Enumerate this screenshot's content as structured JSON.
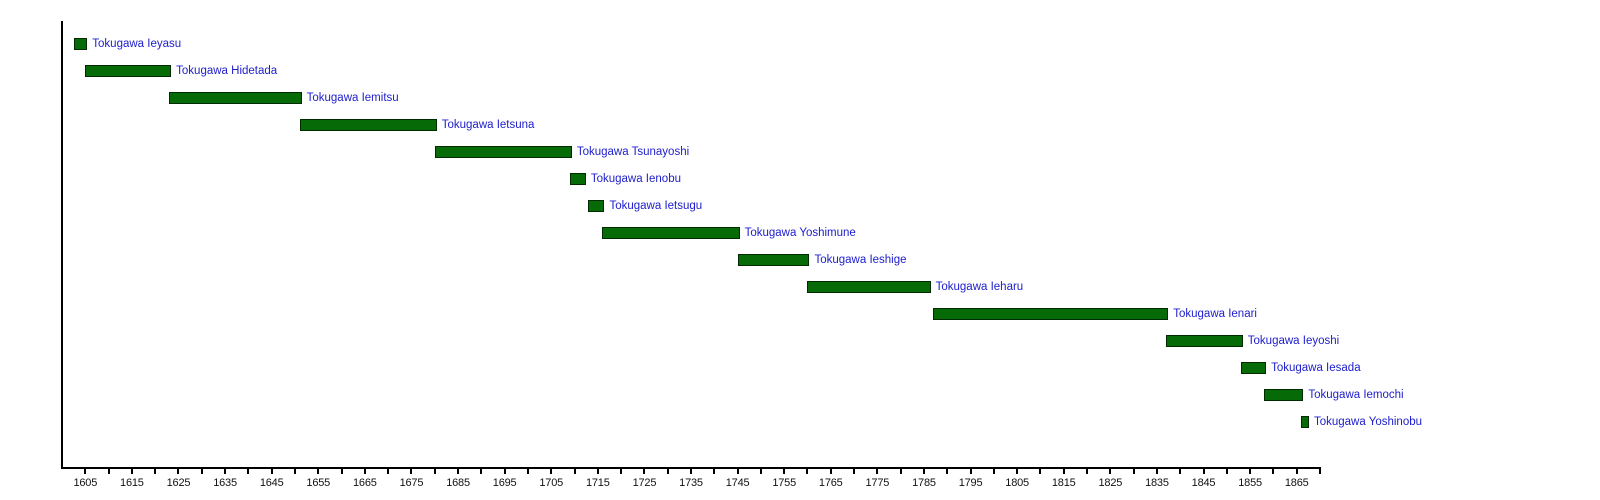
{
  "chart_data": {
    "type": "bar",
    "subtype": "gantt-timeline",
    "title": "",
    "xlabel": "",
    "ylabel": "",
    "xlim": [
      1600,
      1870
    ],
    "x_minor_tick_interval": 5,
    "x_label_interval": 10,
    "grid": false,
    "legend": "none",
    "x_tick_labels": [
      "1605",
      "1615",
      "1625",
      "1635",
      "1645",
      "1655",
      "1665",
      "1675",
      "1685",
      "1695",
      "1705",
      "1715",
      "1725",
      "1735",
      "1745",
      "1755",
      "1765",
      "1775",
      "1785",
      "1795",
      "1805",
      "1815",
      "1825",
      "1835",
      "1845",
      "1855",
      "1865"
    ],
    "bars": [
      {
        "label": "Tokugawa Ieyasu",
        "start": 1602.5,
        "end": 1605
      },
      {
        "label": "Tokugawa Hidetada",
        "start": 1605,
        "end": 1623
      },
      {
        "label": "Tokugawa Iemitsu",
        "start": 1623,
        "end": 1651
      },
      {
        "label": "Tokugawa Ietsuna",
        "start": 1651,
        "end": 1680
      },
      {
        "label": "Tokugawa Tsunayoshi",
        "start": 1680,
        "end": 1709
      },
      {
        "label": "Tokugawa Ienobu",
        "start": 1709,
        "end": 1712
      },
      {
        "label": "Tokugawa Ietsugu",
        "start": 1713,
        "end": 1716
      },
      {
        "label": "Tokugawa Yoshimune",
        "start": 1716,
        "end": 1745
      },
      {
        "label": "Tokugawa Ieshige",
        "start": 1745,
        "end": 1760
      },
      {
        "label": "Tokugawa Ieharu",
        "start": 1760,
        "end": 1786
      },
      {
        "label": "Tokugawa Ienari",
        "start": 1787,
        "end": 1837
      },
      {
        "label": "Tokugawa Ieyoshi",
        "start": 1837,
        "end": 1853
      },
      {
        "label": "Tokugawa Iesada",
        "start": 1853,
        "end": 1858
      },
      {
        "label": "Tokugawa Iemochi",
        "start": 1858,
        "end": 1866
      },
      {
        "label": "Tokugawa Yoshinobu",
        "start": 1866,
        "end": 1867.2
      }
    ],
    "colors": {
      "bar_fill": "#066b06",
      "bar_border": "#002b00",
      "bar_label_text": "#2020cc",
      "axis": "#000000",
      "tick_text": "#111111",
      "background": "#ffffff"
    }
  }
}
